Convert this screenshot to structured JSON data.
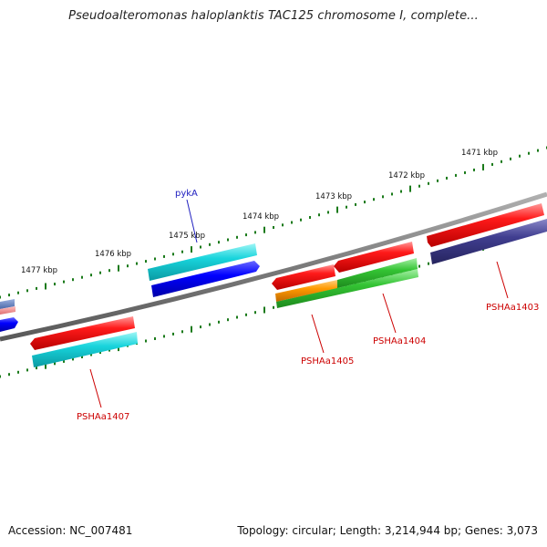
{
  "title": "Pseudoalteromonas haloplanktis TAC125 chromosome I, complete...",
  "accession": "Accession: NC_007481",
  "summary": "Topology: circular; Length: 3,214,944 bp; Genes: 3,073",
  "ruler": {
    "ticks": [
      "1471 kbp",
      "1472 kbp",
      "1473 kbp",
      "1474 kbp",
      "1475 kbp",
      "1476 kbp",
      "1477 kbp"
    ],
    "tick_color": "#1a7a1a"
  },
  "backbone_color": "#808080",
  "genes": [
    {
      "label": "pykA",
      "color": "#0000ff",
      "label_color": "#2020c0"
    },
    {
      "label": "PSHAa1403",
      "color": "#ff0000",
      "label_color": "#cc0000"
    },
    {
      "label": "PSHAa1404",
      "color": "#ff0000",
      "label_color": "#cc0000"
    },
    {
      "label": "PSHAa1405",
      "color": "#ff0000",
      "label_color": "#cc0000"
    },
    {
      "label": "PSHAa1407",
      "color": "#ff0000",
      "label_color": "#cc0000"
    }
  ],
  "feature_colors": {
    "gene_red": "#ff0000",
    "cds_cyan": "#00d0d8",
    "cds_blue": "#0000ff",
    "cds_green": "#30c030",
    "cds_orange": "#ff9900",
    "cds_navy": "#3f3d8c",
    "edge_steel": "#6080c0",
    "edge_pink": "#f08080"
  }
}
